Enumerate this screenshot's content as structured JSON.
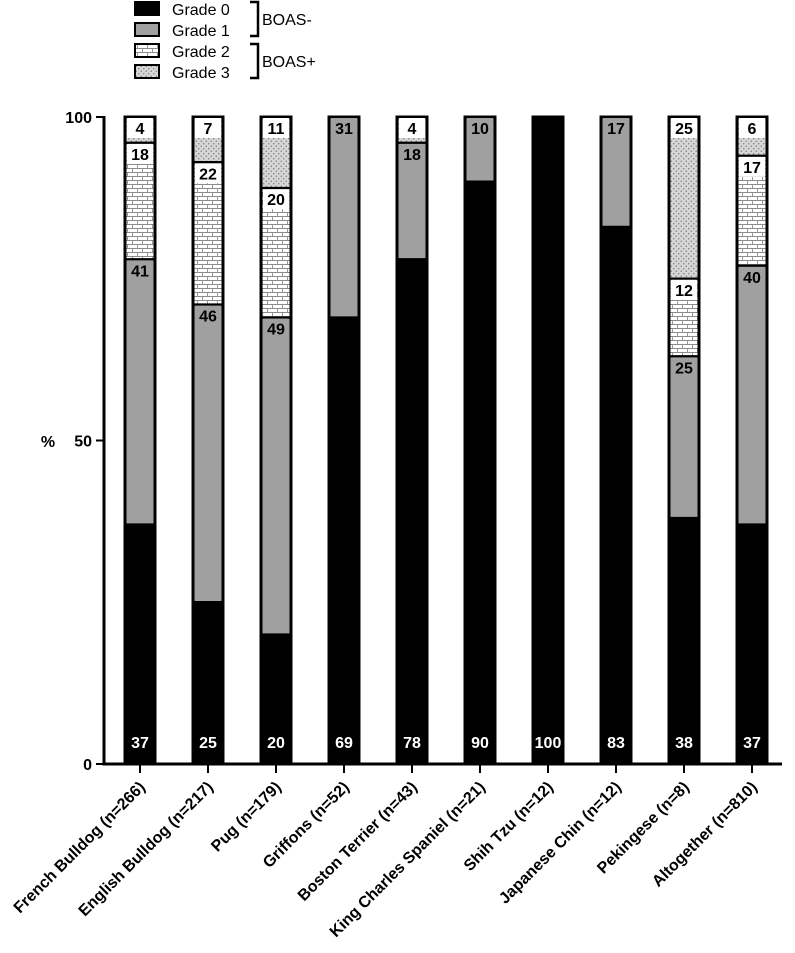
{
  "chart_data": {
    "type": "bar",
    "stacked": true,
    "title": "",
    "xlabel": "",
    "ylabel": "%",
    "ylim": [
      0,
      100
    ],
    "yticks": [
      "0",
      "50",
      "100"
    ],
    "categories": [
      "French Bulldog (n=266)",
      "English Bulldog (n=217)",
      "Pug (n=179)",
      "Griffons (n=52)",
      "Boston Terrier (n=43)",
      "King Charles Spaniel (n=21)",
      "Shih Tzu (n=12)",
      "Japanese Chin (n=12)",
      "Pekingese (n=8)",
      "Altogether (n=810)"
    ],
    "series": [
      {
        "name": "Grade 0",
        "fill": "#000000",
        "values": [
          37,
          25,
          20,
          69,
          78,
          90,
          100,
          83,
          38,
          37
        ]
      },
      {
        "name": "Grade 1",
        "fill": "#a0a0a0",
        "values": [
          41,
          46,
          49,
          31,
          18,
          10,
          0,
          17,
          25,
          40
        ]
      },
      {
        "name": "Grade 2",
        "fill": "brick",
        "values": [
          18,
          22,
          20,
          0,
          0,
          0,
          0,
          0,
          12,
          17
        ]
      },
      {
        "name": "Grade 3",
        "fill": "dots",
        "values": [
          4,
          7,
          11,
          0,
          4,
          0,
          0,
          0,
          25,
          6
        ]
      }
    ],
    "legend": {
      "position": "top-left",
      "groups": [
        {
          "label": "BOAS-",
          "members": [
            "Grade 0",
            "Grade 1"
          ]
        },
        {
          "label": "BOAS+",
          "members": [
            "Grade 2",
            "Grade 3"
          ]
        }
      ]
    },
    "grid": false
  }
}
